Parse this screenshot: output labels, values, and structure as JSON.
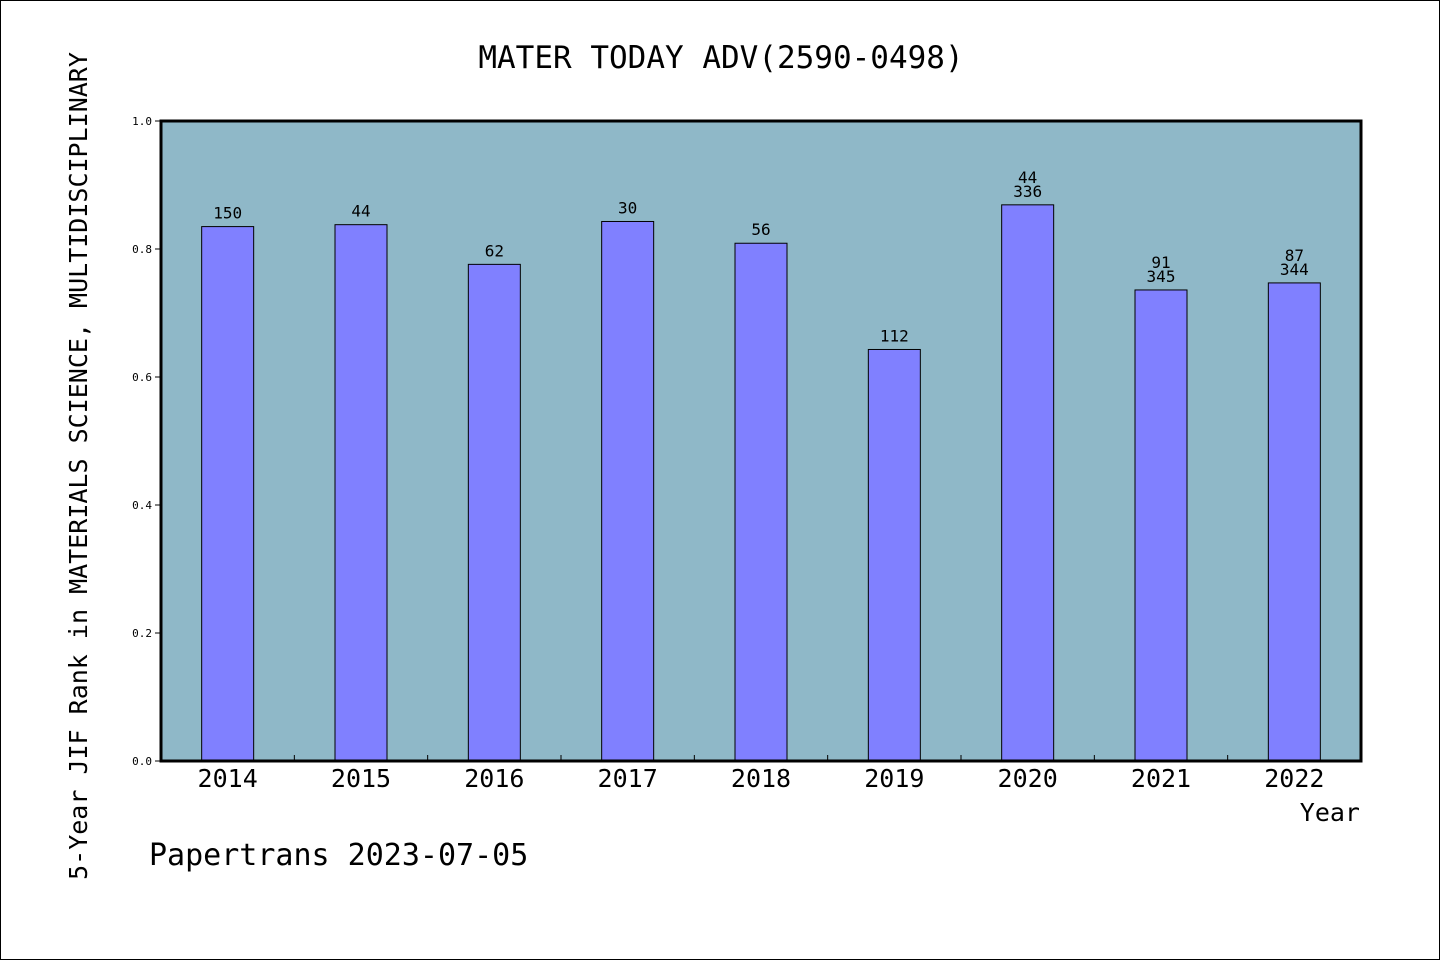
{
  "chart_data": {
    "type": "bar",
    "title": "MATER TODAY ADV(2590-0498)",
    "xlabel": "Year",
    "ylabel": "5-Year JIF Rank in MATERIALS SCIENCE, MULTIDISCIPLINARY",
    "ylim": [
      0,
      1.0
    ],
    "yticks": [
      "0.0",
      "0.2",
      "0.4",
      "0.6",
      "0.8",
      "1.0"
    ],
    "categories": [
      "2014",
      "2015",
      "2016",
      "2017",
      "2018",
      "2019",
      "2020",
      "2021",
      "2022"
    ],
    "values": [
      0.835,
      0.838,
      0.776,
      0.843,
      0.809,
      0.643,
      0.869,
      0.736,
      0.747
    ],
    "labels": [
      [
        "150"
      ],
      [
        "44"
      ],
      [
        "62"
      ],
      [
        "30"
      ],
      [
        "56"
      ],
      [
        "112"
      ],
      [
        "44",
        "336"
      ],
      [
        "91",
        "345"
      ],
      [
        "87",
        "344"
      ]
    ],
    "grid": false,
    "colors": {
      "plot_bg": "#8fb8c8",
      "bar": "#8080ff",
      "border": "#000000"
    }
  },
  "footer": {
    "credit": "Papertrans 2023-07-05"
  }
}
